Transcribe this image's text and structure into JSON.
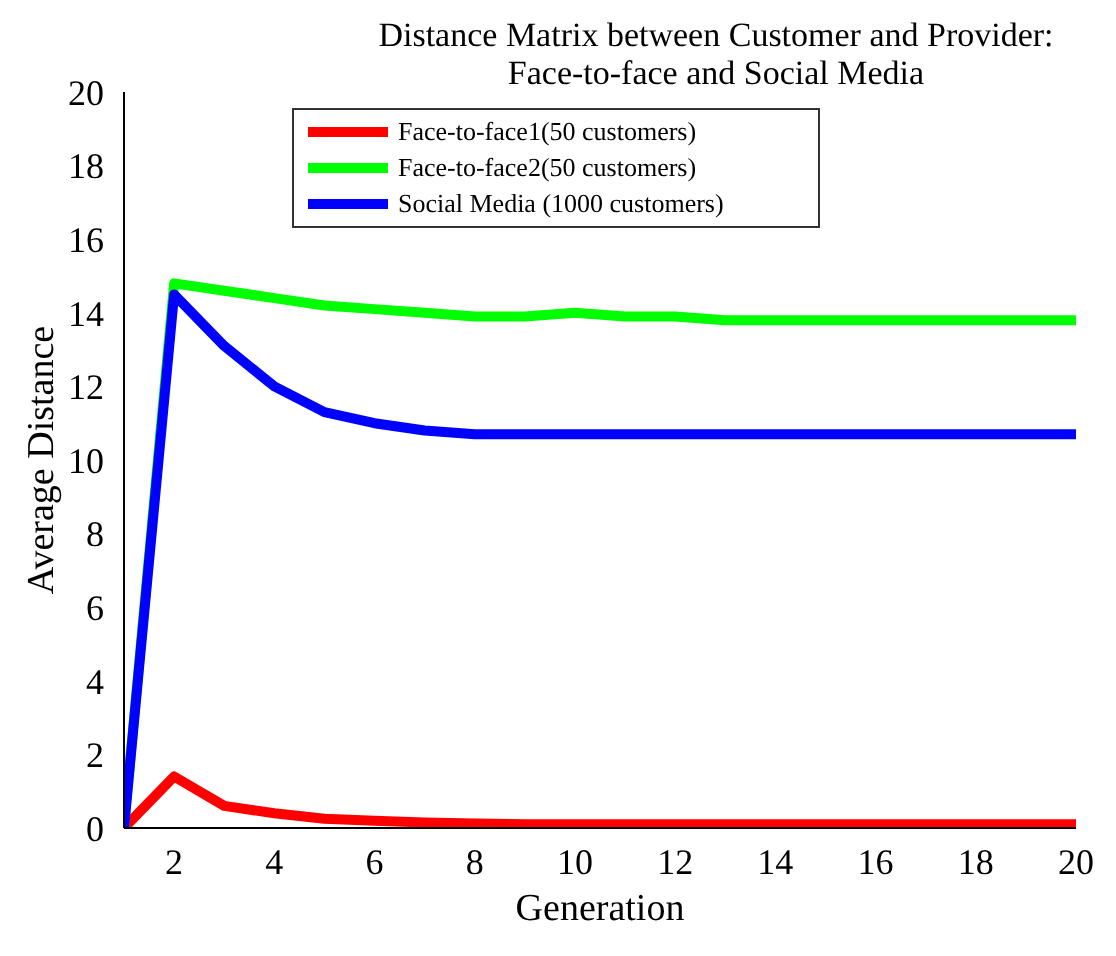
{
  "chart_data": {
    "type": "line",
    "title": "Distance Matrix between Customer and Provider:\nFace-to-face and Social Media",
    "xlabel": "Generation",
    "ylabel": "Average Distance",
    "x": [
      1,
      2,
      3,
      4,
      5,
      6,
      7,
      8,
      9,
      10,
      11,
      12,
      13,
      14,
      15,
      16,
      17,
      18,
      19,
      20
    ],
    "series": [
      {
        "name": "Face-to-face1(50 customers)",
        "color": "#ff0000",
        "values": [
          0,
          1.4,
          0.6,
          0.4,
          0.25,
          0.2,
          0.15,
          0.12,
          0.1,
          0.1,
          0.1,
          0.1,
          0.1,
          0.1,
          0.1,
          0.1,
          0.1,
          0.1,
          0.1,
          0.1
        ]
      },
      {
        "name": "Face-to-face2(50 customers)",
        "color": "#00ff00",
        "values": [
          0,
          14.8,
          14.6,
          14.4,
          14.2,
          14.1,
          14.0,
          13.9,
          13.9,
          14.0,
          13.9,
          13.9,
          13.8,
          13.8,
          13.8,
          13.8,
          13.8,
          13.8,
          13.8,
          13.8
        ]
      },
      {
        "name": "Social Media (1000 customers)",
        "color": "#0000ff",
        "values": [
          0,
          14.5,
          13.1,
          12.0,
          11.3,
          11.0,
          10.8,
          10.7,
          10.7,
          10.7,
          10.7,
          10.7,
          10.7,
          10.7,
          10.7,
          10.7,
          10.7,
          10.7,
          10.7,
          10.7
        ]
      }
    ],
    "xlim": [
      1,
      20
    ],
    "xticks": [
      2,
      4,
      6,
      8,
      10,
      12,
      14,
      16,
      18,
      20
    ],
    "ylim": [
      0,
      20
    ],
    "yticks": [
      0,
      2,
      4,
      6,
      8,
      10,
      12,
      14,
      16,
      18,
      20
    ],
    "grid": false,
    "legend": "top",
    "marker": "none",
    "line_style": "solid"
  }
}
